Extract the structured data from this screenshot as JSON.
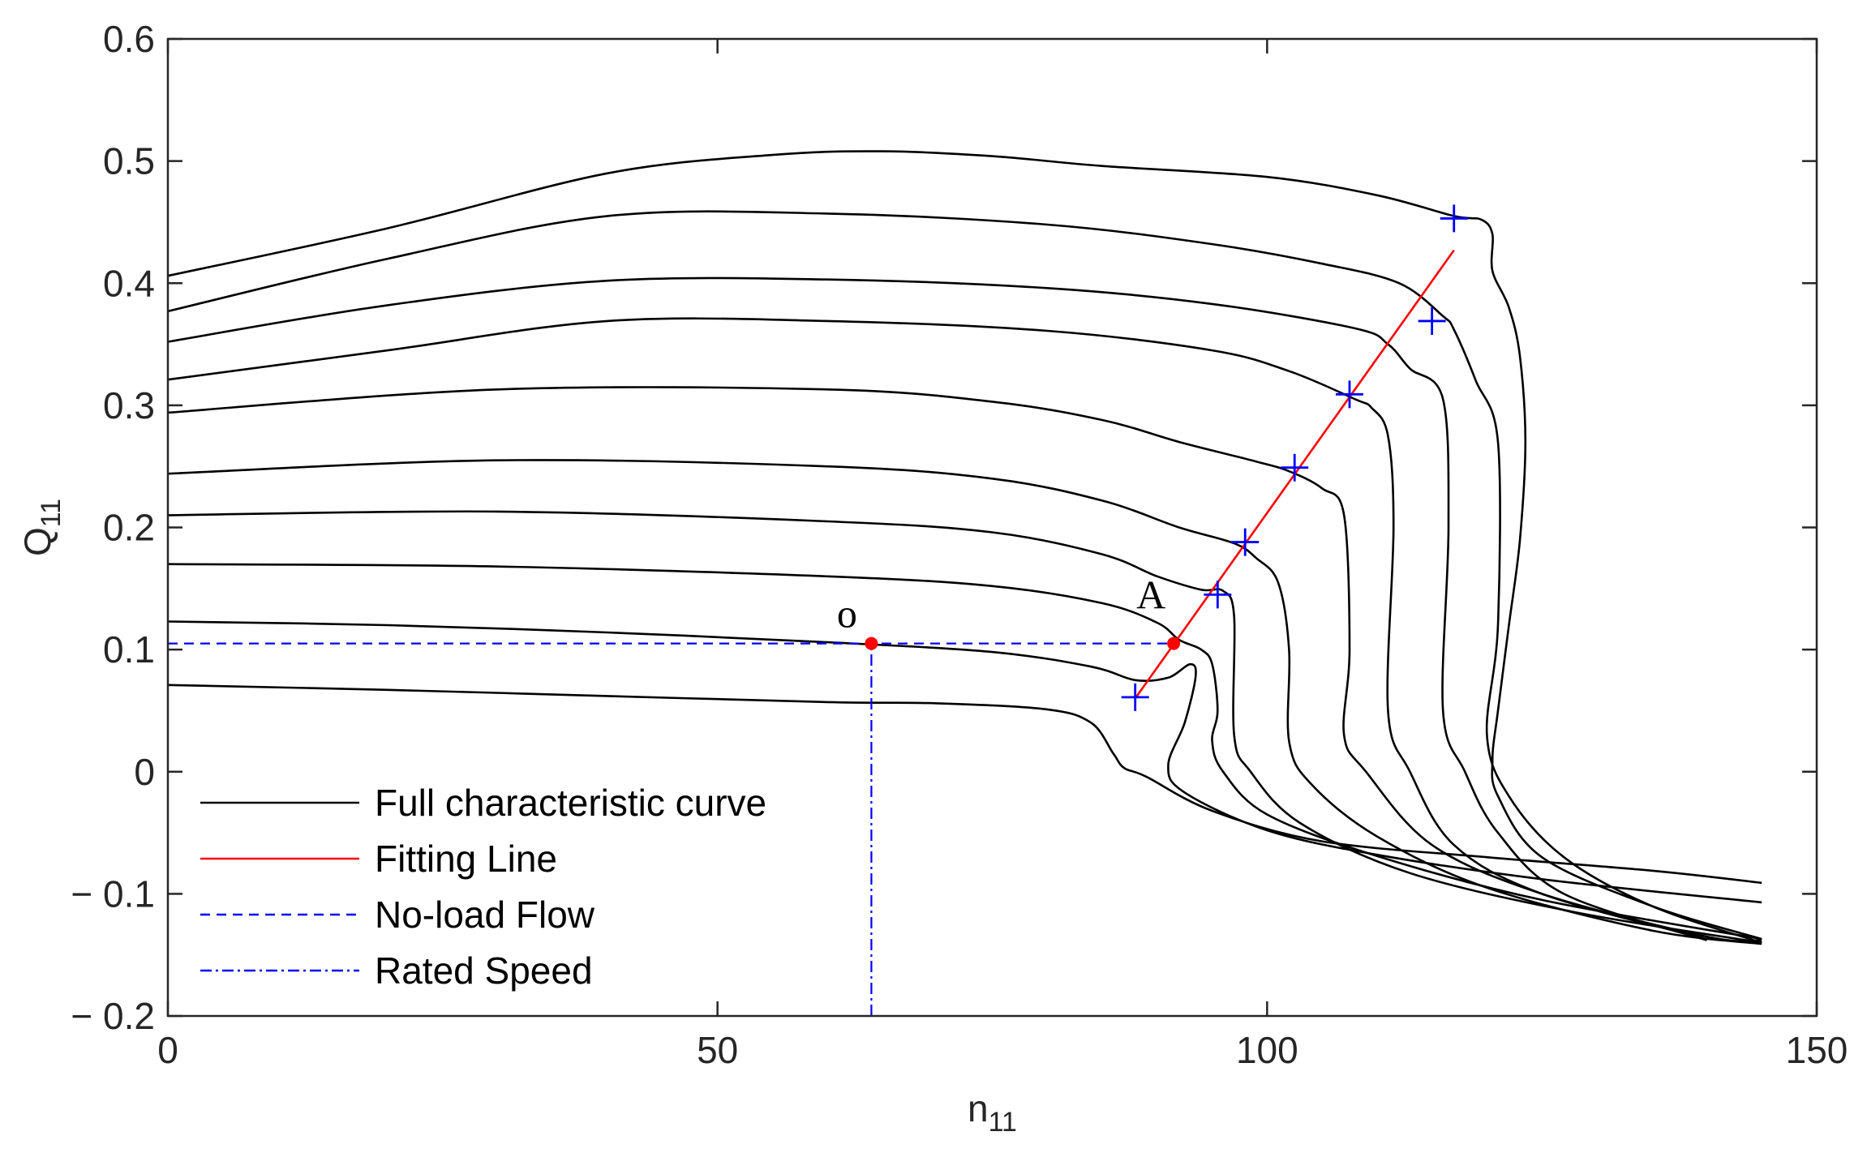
{
  "chart_data": {
    "type": "line",
    "title": "",
    "xlabel": {
      "main": "n",
      "sub": "11"
    },
    "ylabel": {
      "main": "Q",
      "sub": "11"
    },
    "xlim": [
      0,
      150
    ],
    "ylim": [
      -0.2,
      0.6
    ],
    "grid": false,
    "xticks": [
      0,
      50,
      100,
      150
    ],
    "xtick_labels": [
      "0",
      "50",
      "100",
      "150"
    ],
    "yticks": [
      -0.2,
      -0.1,
      0,
      0.1,
      0.2,
      0.3,
      0.4,
      0.5,
      0.6
    ],
    "ytick_labels": [
      "− 0.2",
      "− 0.1",
      "0",
      "0.1",
      "0.2",
      "0.3",
      "0.4",
      "0.5",
      "0.6"
    ],
    "legend": {
      "placement": "bottom-left",
      "entries": [
        {
          "label": "Full characteristic curve",
          "color": "#000000",
          "style": "solid"
        },
        {
          "label": "Fitting Line",
          "color": "#ff0000",
          "style": "solid"
        },
        {
          "label": "No-load Flow",
          "color": "#0000ff",
          "style": "dashed"
        },
        {
          "label": "Rated Speed",
          "color": "#0000ff",
          "style": "dashdot"
        }
      ]
    },
    "series": [
      {
        "name": "curve-1",
        "points": [
          [
            0,
            0.071
          ],
          [
            20,
            0.067
          ],
          [
            40,
            0.062
          ],
          [
            60,
            0.057
          ],
          [
            70,
            0.056
          ],
          [
            80,
            0.051
          ],
          [
            84,
            0.04
          ],
          [
            86,
            0.015
          ],
          [
            87,
            0.003
          ],
          [
            89,
            -0.004
          ],
          [
            95,
            -0.032
          ],
          [
            105,
            -0.057
          ],
          [
            120,
            -0.07
          ],
          [
            135,
            -0.081
          ],
          [
            145,
            -0.091
          ]
        ]
      },
      {
        "name": "curve-2",
        "points": [
          [
            0,
            0.123
          ],
          [
            20,
            0.12
          ],
          [
            40,
            0.114
          ],
          [
            60,
            0.106
          ],
          [
            75,
            0.098
          ],
          [
            84,
            0.086
          ],
          [
            88,
            0.075
          ],
          [
            91,
            0.077
          ],
          [
            93,
            0.088
          ],
          [
            93.5,
            0.078
          ],
          [
            92.5,
            0.04
          ],
          [
            91,
            0.005
          ],
          [
            92.5,
            -0.017
          ],
          [
            100,
            -0.048
          ],
          [
            110,
            -0.068
          ],
          [
            125,
            -0.088
          ],
          [
            145,
            -0.107
          ]
        ]
      },
      {
        "name": "curve-3",
        "points": [
          [
            0,
            0.17
          ],
          [
            30,
            0.168
          ],
          [
            60,
            0.16
          ],
          [
            75,
            0.152
          ],
          [
            85,
            0.138
          ],
          [
            90,
            0.122
          ],
          [
            92,
            0.108
          ],
          [
            94,
            0.1
          ],
          [
            95,
            0.088
          ],
          [
            95.5,
            0.05
          ],
          [
            95,
            0.025
          ],
          [
            96,
            0.0
          ],
          [
            100,
            -0.035
          ],
          [
            110,
            -0.069
          ],
          [
            125,
            -0.105
          ],
          [
            145,
            -0.137
          ]
        ]
      },
      {
        "name": "curve-4",
        "points": [
          [
            0,
            0.21
          ],
          [
            30,
            0.213
          ],
          [
            60,
            0.205
          ],
          [
            75,
            0.196
          ],
          [
            85,
            0.178
          ],
          [
            90,
            0.16
          ],
          [
            94,
            0.149
          ],
          [
            96,
            0.148
          ],
          [
            97,
            0.127
          ],
          [
            97,
            0.03
          ],
          [
            98.5,
            0.0
          ],
          [
            103,
            -0.042
          ],
          [
            113,
            -0.083
          ],
          [
            128,
            -0.115
          ],
          [
            145,
            -0.14
          ]
        ]
      },
      {
        "name": "curve-5",
        "points": [
          [
            0,
            0.244
          ],
          [
            30,
            0.255
          ],
          [
            60,
            0.25
          ],
          [
            75,
            0.24
          ],
          [
            85,
            0.222
          ],
          [
            92,
            0.2
          ],
          [
            97,
            0.187
          ],
          [
            99,
            0.175
          ],
          [
            101,
            0.155
          ],
          [
            102,
            0.1
          ],
          [
            102,
            0.025
          ],
          [
            104,
            -0.01
          ],
          [
            110,
            -0.053
          ],
          [
            120,
            -0.095
          ],
          [
            135,
            -0.13
          ],
          [
            145,
            -0.141
          ]
        ]
      },
      {
        "name": "curve-6",
        "points": [
          [
            0,
            0.294
          ],
          [
            30,
            0.313
          ],
          [
            60,
            0.313
          ],
          [
            75,
            0.303
          ],
          [
            85,
            0.288
          ],
          [
            92,
            0.27
          ],
          [
            99,
            0.254
          ],
          [
            102,
            0.246
          ],
          [
            105,
            0.232
          ],
          [
            107,
            0.21
          ],
          [
            107.5,
            0.1
          ],
          [
            107,
            0.03
          ],
          [
            109,
            0.0
          ],
          [
            115,
            -0.06
          ],
          [
            125,
            -0.1
          ],
          [
            140,
            -0.135
          ],
          [
            145,
            -0.138
          ]
        ]
      },
      {
        "name": "curve-7",
        "points": [
          [
            0,
            0.321
          ],
          [
            20,
            0.345
          ],
          [
            40,
            0.369
          ],
          [
            60,
            0.369
          ],
          [
            80,
            0.361
          ],
          [
            95,
            0.345
          ],
          [
            102,
            0.328
          ],
          [
            108,
            0.305
          ],
          [
            109.5,
            0.298
          ],
          [
            111,
            0.275
          ],
          [
            111.5,
            0.2
          ],
          [
            111,
            0.05
          ],
          [
            113,
            0.0
          ],
          [
            117,
            -0.06
          ],
          [
            125,
            -0.1
          ],
          [
            140,
            -0.137
          ]
        ]
      },
      {
        "name": "curve-8",
        "points": [
          [
            0,
            0.352
          ],
          [
            20,
            0.382
          ],
          [
            40,
            0.402
          ],
          [
            60,
            0.403
          ],
          [
            80,
            0.396
          ],
          [
            95,
            0.383
          ],
          [
            108,
            0.363
          ],
          [
            111,
            0.35
          ],
          [
            113,
            0.33
          ],
          [
            116,
            0.305
          ],
          [
            116.5,
            0.2
          ],
          [
            116,
            0.05
          ],
          [
            118,
            0.0
          ],
          [
            121,
            -0.05
          ],
          [
            127,
            -0.1
          ],
          [
            140,
            -0.138
          ]
        ]
      },
      {
        "name": "curve-9",
        "points": [
          [
            0,
            0.377
          ],
          [
            20,
            0.42
          ],
          [
            40,
            0.455
          ],
          [
            60,
            0.457
          ],
          [
            80,
            0.448
          ],
          [
            95,
            0.432
          ],
          [
            105,
            0.416
          ],
          [
            112,
            0.4
          ],
          [
            116,
            0.373
          ],
          [
            117,
            0.362
          ],
          [
            119,
            0.32
          ],
          [
            121,
            0.27
          ],
          [
            121,
            0.12
          ],
          [
            120,
            0.03
          ],
          [
            122,
            -0.02
          ],
          [
            127,
            -0.07
          ],
          [
            135,
            -0.11
          ],
          [
            145,
            -0.14
          ]
        ]
      },
      {
        "name": "curve-10",
        "points": [
          [
            0,
            0.406
          ],
          [
            20,
            0.445
          ],
          [
            40,
            0.49
          ],
          [
            55,
            0.505
          ],
          [
            65,
            0.508
          ],
          [
            75,
            0.504
          ],
          [
            85,
            0.496
          ],
          [
            100,
            0.487
          ],
          [
            110,
            0.472
          ],
          [
            117,
            0.455
          ],
          [
            119.5,
            0.452
          ],
          [
            120.5,
            0.44
          ],
          [
            120.5,
            0.41
          ],
          [
            122,
            0.38
          ],
          [
            123,
            0.34
          ],
          [
            123.5,
            0.27
          ],
          [
            123,
            0.19
          ],
          [
            122,
            0.12
          ],
          [
            121,
            0.05
          ],
          [
            120.5,
            0.01
          ],
          [
            121,
            -0.02
          ],
          [
            125,
            -0.07
          ],
          [
            135,
            -0.11
          ],
          [
            145,
            -0.137
          ]
        ]
      }
    ],
    "fitting_line": {
      "start": [
        88,
        0.06
      ],
      "end": [
        117,
        0.427
      ]
    },
    "markers": [
      [
        88,
        0.061
      ],
      [
        95.5,
        0.145
      ],
      [
        98,
        0.188
      ],
      [
        102.5,
        0.249
      ],
      [
        107.5,
        0.309
      ],
      [
        115,
        0.369
      ],
      [
        117,
        0.453
      ]
    ],
    "no_load_flow": {
      "y": 0.105,
      "x_start": 0,
      "x_end": 91.5
    },
    "rated_speed": {
      "x": 64,
      "y_start": -0.2,
      "y_end": 0.105
    },
    "points": [
      {
        "label": "o",
        "x": 64,
        "y": 0.105
      },
      {
        "label": "A",
        "x": 91.5,
        "y": 0.105
      }
    ]
  }
}
